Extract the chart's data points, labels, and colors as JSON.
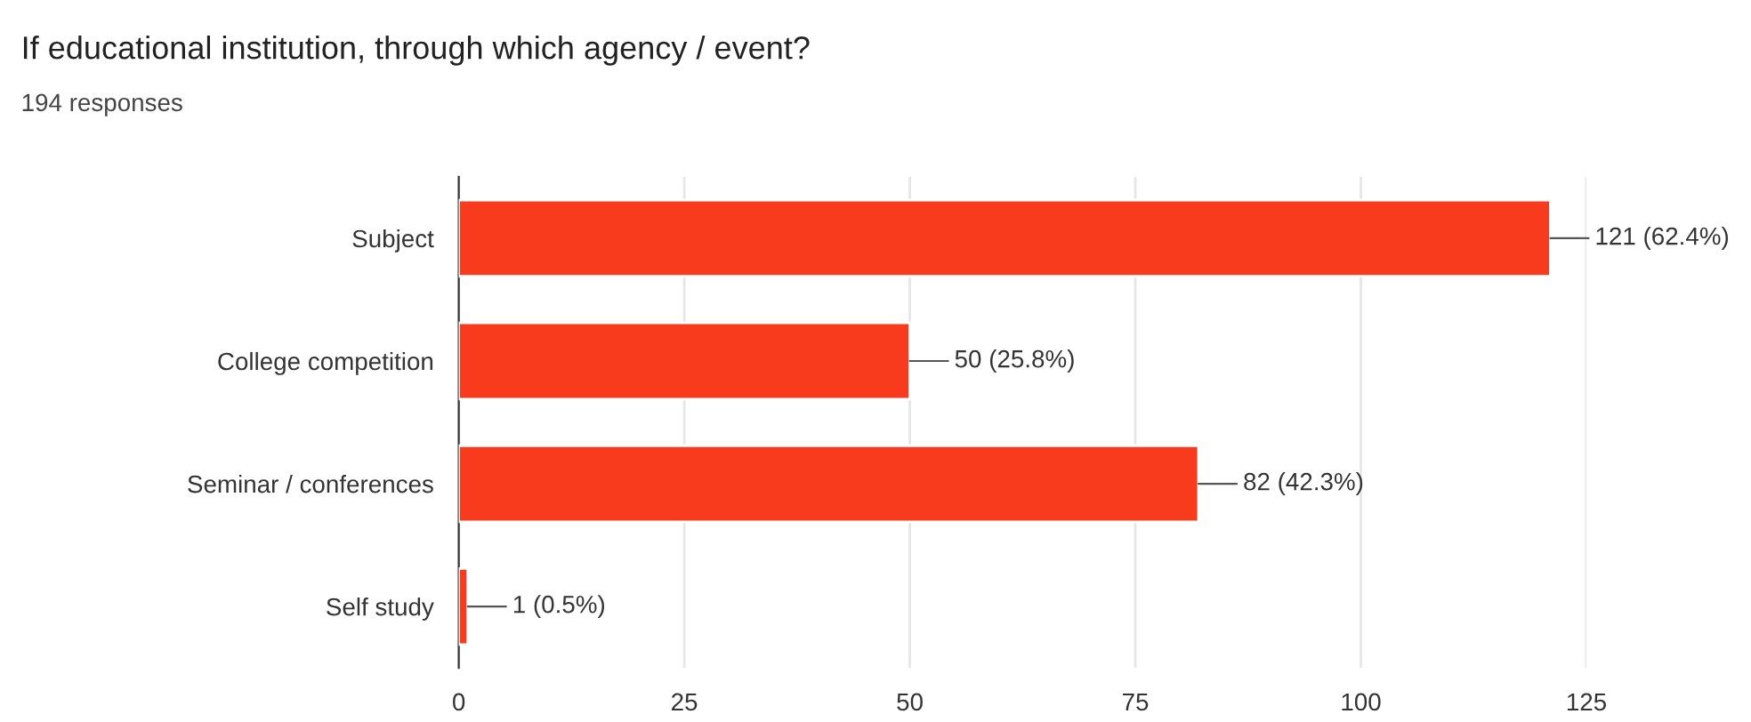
{
  "chart_data": {
    "type": "bar",
    "orientation": "horizontal",
    "title": "If educational institution, through which agency / event?",
    "subtitle": "194 responses",
    "categories": [
      "Subject",
      "College competition",
      "Seminar / conferences",
      "Self study"
    ],
    "values": [
      121,
      50,
      82,
      1
    ],
    "value_labels": [
      "121 (62.4%)",
      "50 (25.8%)",
      "82 (42.3%)",
      "1 (0.5%)"
    ],
    "color": "#f93b1d",
    "xlim": [
      0,
      125
    ],
    "xticks": [
      0,
      25,
      50,
      75,
      100,
      125
    ],
    "grid": "x",
    "legend": false
  }
}
